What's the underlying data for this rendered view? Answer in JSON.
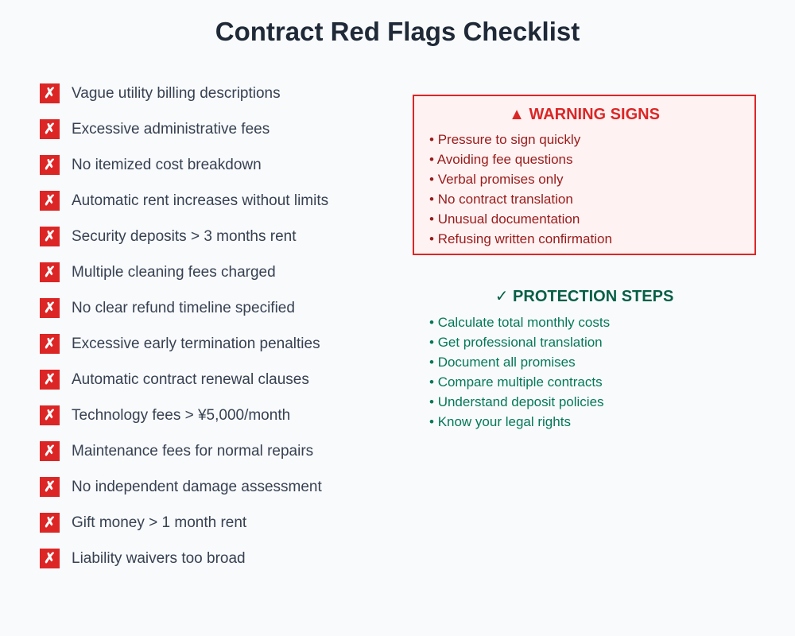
{
  "title": "Contract Red Flags Checklist",
  "colors": {
    "red": "#dc2626",
    "green": "#065f46"
  },
  "red_flags": {
    "icon": "x-mark-icon",
    "items": [
      "Vague utility billing descriptions",
      "Excessive administrative fees",
      "No itemized cost breakdown",
      "Automatic rent increases without limits",
      "Security deposits > 3 months rent",
      "Multiple cleaning fees charged",
      "No clear refund timeline specified",
      "Excessive early termination penalties",
      "Automatic contract renewal clauses",
      "Technology fees > ¥5,000/month",
      "Maintenance fees for normal repairs",
      "No independent damage assessment",
      "Gift money > 1 month rent",
      "Liability waivers too broad"
    ]
  },
  "warning": {
    "icon": "warning-triangle-icon",
    "title": "WARNING SIGNS",
    "items": [
      "Pressure to sign quickly",
      "Avoiding fee questions",
      "Verbal promises only",
      "No contract translation",
      "Unusual documentation",
      "Refusing written confirmation"
    ]
  },
  "protection": {
    "icon": "checkmark-icon",
    "title": "PROTECTION STEPS",
    "items": [
      "Calculate total monthly costs",
      "Get professional translation",
      "Document all promises",
      "Compare multiple contracts",
      "Understand deposit policies",
      "Know your legal rights"
    ]
  }
}
